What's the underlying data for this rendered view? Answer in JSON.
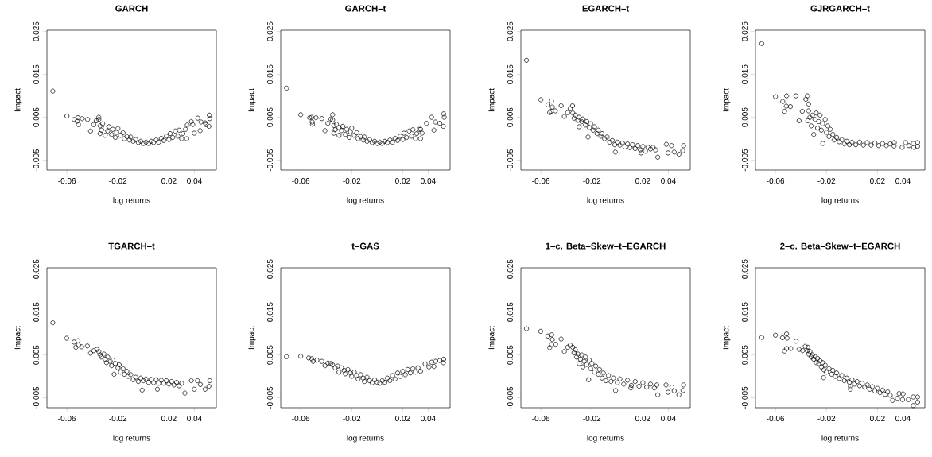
{
  "chart_data": [
    {
      "type": "scatter",
      "title": "GARCH",
      "xlabel": "log returns",
      "ylabel": "Impact",
      "color": "#000000",
      "marker": "circle",
      "xlim": [
        -0.0757,
        0.0572
      ],
      "ylim": [
        -0.0073,
        0.0253
      ],
      "xticks": [
        -0.06,
        -0.02,
        0.02,
        0.04
      ],
      "yticks": [
        -0.005,
        0.005,
        0.015,
        0.025
      ],
      "x": [
        -0.0711,
        -0.06,
        -0.0544,
        -0.0514,
        -0.052,
        -0.051,
        -0.048,
        -0.0438,
        -0.0415,
        -0.039,
        -0.037,
        -0.035,
        -0.035,
        -0.034,
        -0.034,
        -0.033,
        -0.032,
        -0.03,
        -0.03,
        -0.028,
        -0.027,
        -0.025,
        -0.024,
        -0.022,
        -0.021,
        -0.02,
        -0.018,
        -0.016,
        -0.015,
        -0.013,
        -0.011,
        -0.01,
        -0.008,
        -0.006,
        -0.004,
        -0.002,
        0.0,
        0.002,
        0.004,
        0.006,
        0.008,
        0.01,
        0.012,
        0.014,
        0.016,
        0.018,
        0.02,
        0.021,
        0.023,
        0.025,
        0.027,
        0.028,
        0.03,
        0.031,
        0.033,
        0.034,
        0.0344,
        0.0376,
        0.0387,
        0.0399,
        0.0427,
        0.0445,
        0.0452,
        0.0484,
        0.0517,
        0.0521,
        0.0514,
        0.0491
      ],
      "values": [
        0.0111,
        0.0053,
        0.0045,
        0.0049,
        0.0041,
        0.0033,
        0.0047,
        0.0045,
        0.0018,
        0.0033,
        0.0042,
        0.005,
        0.0045,
        0.003,
        0.0012,
        0.002,
        0.0035,
        0.0025,
        0.0008,
        0.0018,
        0.0028,
        0.001,
        0.0022,
        0.0003,
        0.0015,
        0.0024,
        0.0008,
        0.0014,
        0.0,
        0.0005,
        -0.0003,
        0.0004,
        -0.0006,
        -0.0002,
        -0.0009,
        -0.0006,
        -0.0011,
        -0.0008,
        -0.0011,
        -0.0006,
        -0.0009,
        -0.0003,
        -0.0008,
        0.0001,
        -0.0004,
        0.0006,
        -0.0002,
        0.0012,
        0.0003,
        0.0018,
        0.0006,
        0.002,
        0.0,
        0.0012,
        0.0022,
        0.0,
        0.0032,
        0.004,
        0.0033,
        0.0013,
        0.0048,
        0.0019,
        0.0039,
        0.0037,
        0.0055,
        0.0047,
        0.0029,
        0.0033
      ]
    },
    {
      "type": "scatter",
      "title": "GARCH–t",
      "xlabel": "log returns",
      "ylabel": "Impact",
      "color": "#000000",
      "marker": "circle",
      "xlim": [
        -0.0757,
        0.0572
      ],
      "ylim": [
        -0.0073,
        0.0253
      ],
      "xticks": [
        -0.06,
        -0.02,
        0.02,
        0.04
      ],
      "yticks": [
        -0.005,
        0.005,
        0.015,
        0.025
      ],
      "x": [
        -0.0711,
        -0.06,
        -0.053,
        -0.0514,
        -0.051,
        -0.0508,
        -0.048,
        -0.0434,
        -0.041,
        -0.0387,
        -0.0364,
        -0.035,
        -0.035,
        -0.034,
        -0.034,
        -0.033,
        -0.032,
        -0.03,
        -0.03,
        -0.028,
        -0.027,
        -0.025,
        -0.024,
        -0.022,
        -0.021,
        -0.02,
        -0.018,
        -0.016,
        -0.015,
        -0.013,
        -0.011,
        -0.01,
        -0.008,
        -0.006,
        -0.004,
        -0.002,
        0.0,
        0.002,
        0.004,
        0.006,
        0.008,
        0.01,
        0.012,
        0.014,
        0.016,
        0.018,
        0.02,
        0.021,
        0.023,
        0.025,
        0.027,
        0.028,
        0.03,
        0.031,
        0.033,
        0.034,
        0.0352,
        0.0387,
        0.0427,
        0.0445,
        0.0457,
        0.0491,
        0.0519,
        0.0521,
        0.0526,
        0.0341
      ],
      "values": [
        0.0118,
        0.0056,
        0.0049,
        0.005,
        0.0039,
        0.0034,
        0.0049,
        0.0047,
        0.0019,
        0.0036,
        0.0046,
        0.0056,
        0.0044,
        0.0031,
        0.0013,
        0.0021,
        0.0034,
        0.0026,
        0.0008,
        0.0019,
        0.0029,
        0.001,
        0.0022,
        0.0003,
        0.0016,
        0.0025,
        0.0008,
        0.0014,
        0.0,
        0.0005,
        -0.0003,
        0.0004,
        -0.0006,
        -0.0002,
        -0.0009,
        -0.0006,
        -0.0011,
        -0.0008,
        -0.0011,
        -0.0006,
        -0.0009,
        -0.0003,
        -0.0008,
        0.0001,
        -0.0004,
        0.0006,
        -0.0002,
        0.0013,
        0.0003,
        0.0018,
        0.0006,
        0.0021,
        0.0,
        0.0012,
        0.0022,
        0.0,
        0.0013,
        0.0036,
        0.005,
        0.002,
        0.0039,
        0.0036,
        0.0029,
        0.0058,
        0.005,
        0.0022
      ]
    },
    {
      "type": "scatter",
      "title": "EGARCH–t",
      "xlabel": "log returns",
      "ylabel": "Impact",
      "color": "#000000",
      "marker": "circle",
      "xlim": [
        -0.0757,
        0.0572
      ],
      "ylim": [
        -0.0073,
        0.0253
      ],
      "xticks": [
        -0.06,
        -0.02,
        0.02,
        0.04
      ],
      "yticks": [
        -0.005,
        0.005,
        0.015,
        0.025
      ],
      "x": [
        -0.0713,
        -0.06,
        -0.0545,
        -0.0517,
        -0.051,
        -0.0531,
        -0.052,
        -0.0487,
        -0.0441,
        -0.0416,
        -0.039,
        -0.037,
        -0.0352,
        -0.035,
        -0.034,
        -0.033,
        -0.031,
        -0.03,
        -0.03,
        -0.028,
        -0.027,
        -0.025,
        -0.024,
        -0.023,
        -0.022,
        -0.021,
        -0.019,
        -0.018,
        -0.016,
        -0.015,
        -0.013,
        -0.012,
        -0.01,
        -0.008,
        -0.006,
        -0.004,
        -0.002,
        0.0,
        0.002,
        0.004,
        0.006,
        0.008,
        0.01,
        0.012,
        0.014,
        0.016,
        0.018,
        0.02,
        0.022,
        0.024,
        0.026,
        0.028,
        0.03,
        -0.0016,
        0.0186,
        0.0317,
        0.0398,
        0.0446,
        0.0483,
        0.0513,
        0.052,
        0.0425,
        0.0384
      ],
      "values": [
        0.0183,
        0.0091,
        0.0079,
        0.0088,
        0.0074,
        0.0061,
        0.0064,
        0.0065,
        0.0077,
        0.0052,
        0.0061,
        0.007,
        0.0077,
        0.006,
        0.0048,
        0.0055,
        0.0043,
        0.005,
        0.0028,
        0.004,
        0.0046,
        0.0032,
        0.004,
        0.0004,
        0.0026,
        0.0035,
        0.002,
        0.0028,
        0.0012,
        0.002,
        0.0006,
        0.0012,
        0.0,
        0.0004,
        -0.0008,
        -0.0004,
        -0.0014,
        -0.0008,
        -0.0015,
        -0.001,
        -0.0019,
        -0.0012,
        -0.0021,
        -0.0014,
        -0.0023,
        -0.0016,
        -0.0026,
        -0.0018,
        -0.0029,
        -0.002,
        -0.0024,
        -0.002,
        -0.0026,
        -0.0031,
        -0.0033,
        -0.0043,
        -0.0033,
        -0.0031,
        -0.0036,
        -0.0028,
        -0.0016,
        -0.0016,
        -0.0013
      ]
    },
    {
      "type": "scatter",
      "title": "GJRGARCH–t",
      "xlabel": "log returns",
      "ylabel": "Impact",
      "color": "#000000",
      "marker": "circle",
      "xlim": [
        -0.0757,
        0.0572
      ],
      "ylim": [
        -0.0073,
        0.0253
      ],
      "xticks": [
        -0.06,
        -0.02,
        0.02,
        0.04
      ],
      "yticks": [
        -0.005,
        0.005,
        0.015,
        0.025
      ],
      "x": [
        -0.0707,
        -0.06,
        -0.0543,
        -0.0513,
        -0.0529,
        -0.0515,
        -0.0483,
        -0.044,
        -0.0415,
        -0.039,
        -0.0362,
        -0.035,
        -0.034,
        -0.0346,
        -0.034,
        -0.033,
        -0.032,
        -0.031,
        -0.03,
        -0.029,
        -0.028,
        -0.027,
        -0.026,
        -0.025,
        -0.024,
        -0.023,
        -0.0228,
        -0.021,
        -0.02,
        -0.019,
        -0.018,
        -0.017,
        -0.015,
        -0.014,
        -0.012,
        -0.01,
        -0.008,
        -0.006,
        -0.004,
        -0.002,
        0.0,
        0.003,
        0.006,
        0.009,
        0.012,
        0.015,
        0.018,
        0.021,
        0.024,
        0.027,
        0.03,
        0.033,
        0.0332,
        0.0394,
        0.042,
        0.0447,
        0.0481,
        0.0515,
        0.0515,
        0.0485
      ],
      "values": [
        0.0222,
        0.0098,
        0.0087,
        0.01,
        0.0064,
        0.0076,
        0.0075,
        0.01,
        0.0042,
        0.0064,
        0.0092,
        0.01,
        0.0081,
        0.0042,
        0.0065,
        0.005,
        0.003,
        0.0055,
        0.001,
        0.0045,
        0.006,
        0.0025,
        0.004,
        0.0055,
        0.002,
        0.0035,
        -0.0011,
        0.0045,
        0.0015,
        0.003,
        0.0005,
        0.0022,
        0.001,
        -0.0003,
        0.0003,
        -0.0007,
        -0.0002,
        -0.0012,
        -0.0006,
        -0.0014,
        -0.0008,
        -0.0014,
        -0.0008,
        -0.0015,
        -0.0009,
        -0.0015,
        -0.001,
        -0.0016,
        -0.0011,
        -0.0016,
        -0.0012,
        -0.0017,
        -0.0009,
        -0.002,
        -0.0009,
        -0.0016,
        -0.0011,
        -0.0009,
        -0.0018,
        -0.002
      ]
    },
    {
      "type": "scatter",
      "title": "TGARCH–t",
      "xlabel": "log returns",
      "ylabel": "Impact",
      "color": "#000000",
      "marker": "circle",
      "xlim": [
        -0.0757,
        0.0572
      ],
      "ylim": [
        -0.0073,
        0.0253
      ],
      "xticks": [
        -0.06,
        -0.02,
        0.02,
        0.04
      ],
      "yticks": [
        -0.005,
        0.005,
        0.015,
        0.025
      ],
      "x": [
        -0.0711,
        -0.0602,
        -0.0544,
        -0.0514,
        -0.053,
        -0.051,
        -0.0485,
        -0.044,
        -0.0415,
        -0.039,
        -0.0364,
        -0.035,
        -0.034,
        -0.033,
        -0.031,
        -0.03,
        -0.029,
        -0.028,
        -0.026,
        -0.025,
        -0.024,
        -0.023,
        -0.022,
        -0.02,
        -0.019,
        -0.018,
        -0.016,
        -0.015,
        -0.013,
        -0.012,
        -0.01,
        -0.008,
        -0.006,
        -0.004,
        -0.002,
        0.0,
        0.002,
        0.004,
        0.006,
        0.008,
        0.01,
        0.012,
        0.014,
        0.016,
        0.018,
        0.02,
        0.022,
        0.024,
        0.026,
        0.028,
        0.03,
        -0.001,
        0.011,
        0.0325,
        0.0399,
        0.0447,
        0.0484,
        0.0521,
        0.0514,
        0.0424,
        0.0376
      ],
      "values": [
        0.0125,
        0.0089,
        0.008,
        0.0083,
        0.0068,
        0.0073,
        0.0069,
        0.0071,
        0.0054,
        0.006,
        0.0063,
        0.0058,
        0.005,
        0.0045,
        0.0052,
        0.004,
        0.0032,
        0.0045,
        0.0035,
        0.0025,
        0.0038,
        0.0005,
        0.003,
        0.002,
        0.0027,
        0.001,
        0.0018,
        0.0005,
        0.0012,
        0.0,
        0.0004,
        -0.0008,
        -0.0002,
        -0.0012,
        -0.0004,
        -0.001,
        -0.0006,
        -0.0014,
        -0.0007,
        -0.0015,
        -0.0008,
        -0.0016,
        -0.0009,
        -0.0016,
        -0.001,
        -0.0018,
        -0.0012,
        -0.002,
        -0.0014,
        -0.0022,
        -0.0016,
        -0.0032,
        -0.003,
        -0.0039,
        -0.003,
        -0.0019,
        -0.003,
        -0.001,
        -0.0023,
        -0.001,
        -0.001
      ]
    },
    {
      "type": "scatter",
      "title": "t–GAS",
      "xlabel": "log returns",
      "ylabel": "Impact",
      "color": "#000000",
      "marker": "circle",
      "xlim": [
        -0.0757,
        0.0572
      ],
      "ylim": [
        -0.0073,
        0.0253
      ],
      "xticks": [
        -0.06,
        -0.02,
        0.02,
        0.04
      ],
      "yticks": [
        -0.005,
        0.005,
        0.015,
        0.025
      ],
      "x": [
        -0.0712,
        -0.06,
        -0.0538,
        -0.0514,
        -0.0503,
        -0.0473,
        -0.0434,
        -0.041,
        -0.0387,
        -0.0364,
        -0.035,
        -0.033,
        -0.031,
        -0.03,
        -0.028,
        -0.026,
        -0.025,
        -0.023,
        -0.021,
        -0.02,
        -0.018,
        -0.016,
        -0.015,
        -0.013,
        -0.011,
        -0.01,
        -0.008,
        -0.006,
        -0.004,
        -0.002,
        0.0,
        0.002,
        0.004,
        0.006,
        0.008,
        0.01,
        0.012,
        0.014,
        0.016,
        0.018,
        0.02,
        0.022,
        0.024,
        0.026,
        0.028,
        0.03,
        0.032,
        0.034,
        0.0376,
        0.0406,
        0.0427,
        0.0445,
        0.0457,
        0.0491,
        0.0521,
        0.0519
      ],
      "values": [
        0.0046,
        0.0047,
        0.0043,
        0.0041,
        0.0035,
        0.0038,
        0.0035,
        0.0025,
        0.0031,
        0.003,
        0.0027,
        0.002,
        0.0024,
        0.001,
        0.002,
        0.0014,
        0.0006,
        0.0016,
        0.0008,
        0.0,
        0.001,
        0.0002,
        -0.0006,
        0.0004,
        -0.0004,
        -0.0012,
        -0.0002,
        -0.001,
        -0.0015,
        -0.0008,
        -0.0014,
        -0.0016,
        -0.001,
        -0.0014,
        -0.0004,
        -0.001,
        0.0002,
        -0.0006,
        0.0008,
        0.0,
        0.0012,
        0.0004,
        0.0016,
        0.0008,
        0.0018,
        0.001,
        0.002,
        0.0012,
        0.0029,
        0.0022,
        0.0033,
        0.0023,
        0.0035,
        0.0037,
        0.004,
        0.0032
      ]
    },
    {
      "type": "scatter",
      "title": "1–c. Beta–Skew–t–EGARCH",
      "xlabel": "log returns",
      "ylabel": "Impact",
      "color": "#000000",
      "marker": "circle",
      "xlim": [
        -0.0757,
        0.0572
      ],
      "ylim": [
        -0.0073,
        0.0253
      ],
      "xticks": [
        -0.06,
        -0.02,
        0.02,
        0.04
      ],
      "yticks": [
        -0.005,
        0.005,
        0.015,
        0.025
      ],
      "x": [
        -0.0713,
        -0.0602,
        -0.0545,
        -0.0515,
        -0.051,
        -0.0531,
        -0.0517,
        -0.0485,
        -0.0441,
        -0.0416,
        -0.039,
        -0.037,
        -0.035,
        -0.034,
        -0.033,
        -0.032,
        -0.031,
        -0.03,
        -0.029,
        -0.028,
        -0.027,
        -0.026,
        -0.025,
        -0.024,
        -0.0225,
        -0.022,
        -0.021,
        -0.02,
        -0.018,
        -0.017,
        -0.015,
        -0.014,
        -0.012,
        -0.011,
        -0.009,
        -0.007,
        -0.005,
        -0.003,
        0.0,
        0.002,
        0.005,
        0.008,
        0.011,
        0.014,
        0.017,
        0.02,
        0.023,
        0.026,
        0.029,
        0.031,
        -0.0014,
        0.0106,
        0.0317,
        0.0398,
        0.0446,
        0.0483,
        0.052,
        0.0515,
        0.0382,
        0.0428
      ],
      "values": [
        0.0111,
        0.0105,
        0.0094,
        0.0097,
        0.0086,
        0.0067,
        0.0074,
        0.0075,
        0.0087,
        0.0058,
        0.0068,
        0.0073,
        0.0068,
        0.0055,
        0.0062,
        0.0045,
        0.0052,
        0.003,
        0.004,
        0.005,
        0.0022,
        0.0035,
        0.0045,
        0.0028,
        -0.0008,
        0.0038,
        0.0018,
        0.003,
        0.001,
        0.0024,
        0.0005,
        0.0016,
        -0.0004,
        0.0008,
        -0.001,
        0.0002,
        -0.0012,
        -0.0004,
        -0.0015,
        -0.0006,
        -0.0018,
        -0.0009,
        -0.0021,
        -0.0012,
        -0.0023,
        -0.0015,
        -0.0025,
        -0.0018,
        -0.0027,
        -0.002,
        -0.0033,
        -0.0027,
        -0.0043,
        -0.0037,
        -0.0034,
        -0.0043,
        -0.002,
        -0.0033,
        -0.002,
        -0.0025
      ]
    },
    {
      "type": "scatter",
      "title": "2–c. Beta–Skew–t–EGARCH",
      "xlabel": "log returns",
      "ylabel": "Impact",
      "color": "#000000",
      "marker": "circle",
      "xlim": [
        -0.0757,
        0.0572
      ],
      "ylim": [
        -0.0073,
        0.0253
      ],
      "xticks": [
        -0.06,
        -0.02,
        0.02,
        0.04
      ],
      "yticks": [
        -0.005,
        0.005,
        0.015,
        0.025
      ],
      "x": [
        -0.0707,
        -0.06,
        -0.0545,
        -0.0513,
        -0.0509,
        -0.0529,
        -0.0513,
        -0.0481,
        -0.0438,
        -0.0415,
        -0.0387,
        -0.0367,
        -0.0346,
        -0.035,
        -0.034,
        -0.033,
        -0.032,
        -0.031,
        -0.03,
        -0.029,
        -0.028,
        -0.027,
        -0.026,
        -0.025,
        -0.024,
        -0.023,
        -0.022,
        -0.021,
        -0.02,
        -0.0223,
        -0.018,
        -0.016,
        -0.015,
        -0.013,
        -0.012,
        -0.01,
        -0.008,
        -0.006,
        -0.004,
        -0.002,
        0.0,
        0.002,
        0.004,
        0.006,
        0.008,
        0.01,
        0.012,
        0.014,
        0.016,
        0.018,
        0.02,
        0.022,
        0.024,
        0.026,
        0.028,
        0.03,
        -0.0012,
        -0.0012,
        0.0319,
        0.0356,
        0.0401,
        0.0397,
        0.0443,
        0.0481,
        0.0515,
        0.0515,
        0.0481,
        0.037
      ],
      "values": [
        0.0091,
        0.0096,
        0.009,
        0.0099,
        0.0089,
        0.0059,
        0.0065,
        0.0065,
        0.0082,
        0.0063,
        0.006,
        0.007,
        0.0068,
        0.006,
        0.0052,
        0.0058,
        0.0045,
        0.005,
        0.004,
        0.0046,
        0.0032,
        0.0042,
        0.003,
        0.0036,
        0.0022,
        0.0032,
        0.0015,
        0.0026,
        0.001,
        -0.0003,
        0.0018,
        0.0005,
        0.0014,
        0.0,
        0.0008,
        -0.0005,
        0.0002,
        -0.001,
        -0.0004,
        -0.0014,
        -0.0008,
        -0.0018,
        -0.0012,
        -0.0022,
        -0.0016,
        -0.0025,
        -0.002,
        -0.003,
        -0.0024,
        -0.0034,
        -0.0028,
        -0.0038,
        -0.0032,
        -0.0042,
        -0.0036,
        -0.0044,
        -0.003,
        -0.0024,
        -0.0056,
        -0.0051,
        -0.0041,
        -0.0054,
        -0.0054,
        -0.0048,
        -0.0048,
        -0.006,
        -0.0068,
        -0.004
      ]
    }
  ]
}
